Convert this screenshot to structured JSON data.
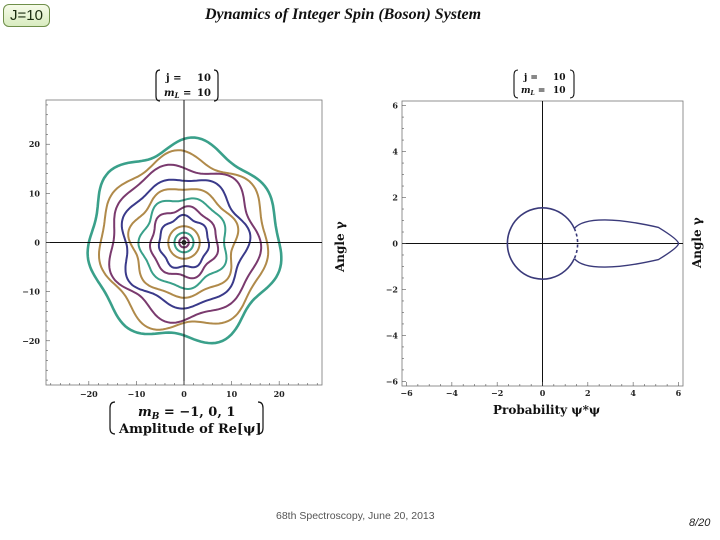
{
  "slide": {
    "badge": "J=10",
    "title": "Dynamics of Integer Spin (Boson) System",
    "footer": "68th Spectroscopy, June 20, 2013",
    "page": "8/20"
  },
  "chart_data": [
    {
      "type": "line",
      "name": "phase-plot-amplitude",
      "matrix_label": {
        "row1": "j =",
        "row1_val": "10",
        "row2": "m",
        "row2_sub": "L",
        "row2_eq": " =",
        "row2_val": "10"
      },
      "xlabel_line1": {
        "prefix": "m",
        "sub": "B",
        "text": " = −1,  0,  1"
      },
      "xlabel_line2": "Amplitude  of  Re[ψ]",
      "ylabel": "",
      "xlim": [
        -29,
        29
      ],
      "ylim": [
        -29,
        29
      ],
      "xticks": [
        -20,
        -10,
        0,
        10,
        20
      ],
      "xtick_labels": [
        "−20",
        "−10",
        "0",
        "10",
        "20"
      ],
      "yticks": [
        20,
        10,
        0,
        -10,
        -20
      ],
      "ytick_labels": [
        "20",
        "10",
        "0",
        "−10",
        "−20"
      ],
      "series": [
        {
          "radius": 1.0,
          "color": "#7a3a6e"
        },
        {
          "radius": 2.0,
          "color": "#3aa08a"
        },
        {
          "radius": 3.3,
          "color": "#b08a4a"
        },
        {
          "radius": 5.2,
          "color": "#3a3a8a"
        },
        {
          "radius": 7.0,
          "color": "#7a3a6e"
        },
        {
          "radius": 9.0,
          "color": "#3aa08a"
        },
        {
          "radius": 11.0,
          "color": "#b08a4a"
        },
        {
          "radius": 13.0,
          "color": "#3a3a8a"
        },
        {
          "radius": 15.5,
          "color": "#7a3a6e"
        },
        {
          "radius": 17.5,
          "color": "#b08a4a"
        },
        {
          "radius": 20.0,
          "color": "#3aa08a"
        }
      ]
    },
    {
      "type": "line",
      "name": "phase-plot-probability",
      "matrix_label": {
        "row1": "j =",
        "row1_val": "10",
        "row2": "m",
        "row2_sub": "L",
        "row2_eq": " =",
        "row2_val": "10"
      },
      "xlabel": "Probability  ψ*ψ",
      "ylabel": "Angle  γ",
      "xlim": [
        -6.2,
        6.2
      ],
      "ylim": [
        -6.2,
        6.2
      ],
      "xticks": [
        -6,
        -4,
        -2,
        0,
        2,
        4,
        6
      ],
      "xtick_labels": [
        "−6",
        "−4",
        "−2",
        "0",
        "2",
        "4",
        "6"
      ],
      "yticks": [
        6,
        4,
        2,
        0,
        -2,
        -4,
        -6
      ],
      "ytick_labels": [
        "6",
        "4",
        "2",
        "0",
        "−2",
        "−4",
        "−6"
      ],
      "circle_radius": 1.55,
      "lobe_tip": 6.0,
      "color": "#3a3a7a"
    }
  ],
  "left_side_label": "Angle  γ"
}
